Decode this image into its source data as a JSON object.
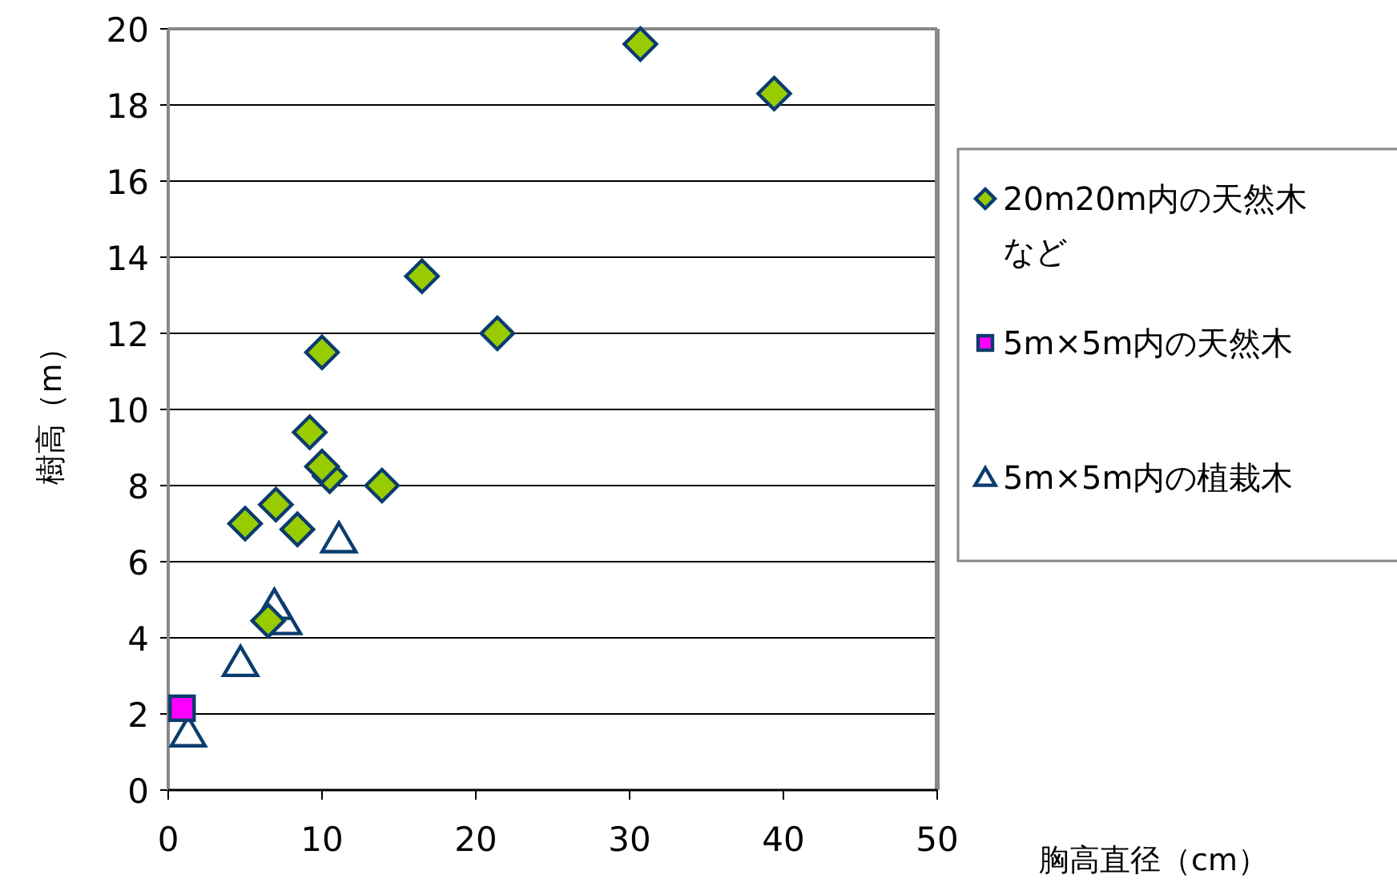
{
  "chart_data": {
    "type": "scatter",
    "xlabel": "胸高直径（cm）",
    "ylabel": "樹高（m）",
    "xlim": [
      0,
      50
    ],
    "xticks": [
      0,
      10,
      20,
      30,
      40,
      50
    ],
    "ylim": [
      0,
      20
    ],
    "yticks": [
      0,
      2,
      4,
      6,
      8,
      10,
      12,
      14,
      16,
      18,
      20
    ],
    "grid": "y",
    "legend": "right",
    "series": [
      {
        "name": "20m20m内の天然木など",
        "color": "#99cc00",
        "marker": "diamond",
        "x": [
          30.7,
          39.4,
          16.5,
          21.4,
          10.0,
          9.2,
          10.5,
          10.0,
          13.9,
          7.0,
          5.0,
          8.4,
          6.5
        ],
        "values": [
          19.6,
          18.3,
          13.5,
          12.0,
          11.5,
          9.4,
          8.25,
          8.5,
          8.0,
          7.5,
          7.0,
          6.85,
          4.45
        ]
      },
      {
        "name": "5m×5m内の天然木",
        "color": "#ff00ff",
        "marker": "square",
        "x": [
          0.9
        ],
        "values": [
          2.15
        ]
      },
      {
        "name": "5m×5m内の植栽木",
        "color": "#ffffff",
        "marker": "triangle",
        "x": [
          11.1,
          7.5,
          6.9,
          4.7,
          1.3
        ],
        "values": [
          6.6,
          4.45,
          4.85,
          3.35,
          1.5
        ]
      }
    ]
  }
}
